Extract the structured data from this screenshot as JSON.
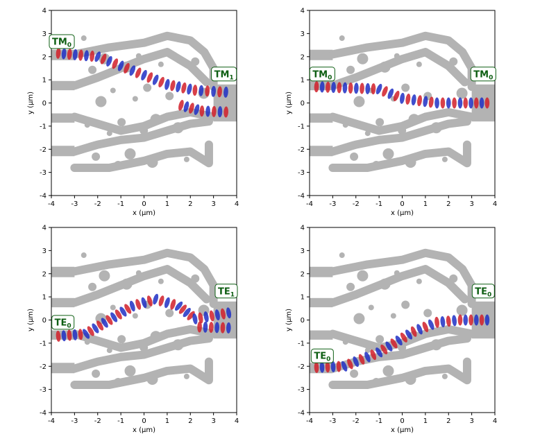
{
  "chart_data": [
    {
      "type": "field",
      "xlabel": "x (µm)",
      "ylabel": "y (µm)",
      "xlim": [
        -4,
        4
      ],
      "ylim": [
        -4,
        4
      ],
      "xticks": [
        -4,
        -3,
        -2,
        -1,
        0,
        1,
        2,
        3,
        4
      ],
      "yticks": [
        -4,
        -3,
        -2,
        -1,
        0,
        1,
        2,
        3,
        4
      ],
      "annotations": [
        {
          "text": "TM",
          "sub": "0"
        },
        {
          "text": "TM",
          "sub": "1"
        }
      ]
    },
    {
      "type": "field",
      "xlabel": "x (µm)",
      "ylabel": "y (µm)",
      "xlim": [
        -4,
        4
      ],
      "ylim": [
        -4,
        4
      ],
      "xticks": [
        -4,
        -3,
        -2,
        -1,
        0,
        1,
        2,
        3,
        4
      ],
      "yticks": [
        -4,
        -3,
        -2,
        -1,
        0,
        1,
        2,
        3,
        4
      ],
      "annotations": [
        {
          "text": "TM",
          "sub": "0"
        },
        {
          "text": "TM",
          "sub": "0"
        }
      ]
    },
    {
      "type": "field",
      "xlabel": "x (µm)",
      "ylabel": "y (µm)",
      "xlim": [
        -4,
        4
      ],
      "ylim": [
        -4,
        4
      ],
      "xticks": [
        -4,
        -3,
        -2,
        -1,
        0,
        1,
        2,
        3,
        4
      ],
      "yticks": [
        -4,
        -3,
        -2,
        -1,
        0,
        1,
        2,
        3,
        4
      ],
      "annotations": [
        {
          "text": "TE",
          "sub": "0"
        },
        {
          "text": "TE",
          "sub": "1"
        }
      ]
    },
    {
      "type": "field",
      "xlabel": "x (µm)",
      "ylabel": "y (µm)",
      "xlim": [
        -4,
        4
      ],
      "ylim": [
        -4,
        4
      ],
      "xticks": [
        -4,
        -3,
        -2,
        -1,
        0,
        1,
        2,
        3,
        4
      ],
      "yticks": [
        -4,
        -3,
        -2,
        -1,
        0,
        1,
        2,
        3,
        4
      ],
      "annotations": [
        {
          "text": "TE",
          "sub": "0"
        },
        {
          "text": "TE",
          "sub": "0"
        }
      ]
    }
  ]
}
